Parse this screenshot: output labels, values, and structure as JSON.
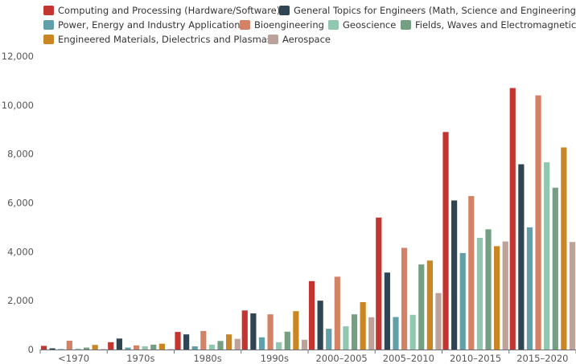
{
  "chart_data": {
    "type": "bar",
    "title": "",
    "xlabel": "",
    "ylabel": "",
    "ylim": [
      0,
      12000
    ],
    "y_ticks": [
      "0",
      "2,000",
      "4,000",
      "6,000",
      "8,000",
      "10,000",
      "12,000"
    ],
    "grid": false,
    "legend_position": "top-left",
    "categories": [
      "<1970",
      "1970s",
      "1980s",
      "1990s",
      "2000–2005",
      "2005–2010",
      "2010–2015",
      "2015–2020"
    ],
    "series": [
      {
        "name": "Computing and Processing (Hardware/Software)",
        "color": "#c23531",
        "values": [
          150,
          300,
          720,
          1600,
          2800,
          5400,
          8900,
          10700
        ]
      },
      {
        "name": "General Topics for Engineers (Math, Science and Engineering)",
        "color": "#2f4554",
        "values": [
          50,
          450,
          620,
          1480,
          2000,
          3150,
          6100,
          7580
        ]
      },
      {
        "name": "Power, Energy and Industry Applications",
        "color": "#61a0a8",
        "values": [
          20,
          80,
          130,
          500,
          850,
          1330,
          3950,
          5000
        ]
      },
      {
        "name": "Bioengineering",
        "color": "#d48265",
        "values": [
          360,
          170,
          760,
          1440,
          2980,
          4160,
          6280,
          10400
        ]
      },
      {
        "name": "Geoscience",
        "color": "#91c7ae",
        "values": [
          40,
          130,
          200,
          300,
          950,
          1420,
          4570,
          7660
        ]
      },
      {
        "name": "Fields, Waves and Electromagnetics",
        "color": "#749f83",
        "values": [
          80,
          200,
          350,
          730,
          1440,
          3480,
          4920,
          6620
        ]
      },
      {
        "name": "Engineered Materials, Dielectrics and Plasmas",
        "color": "#ca8622",
        "values": [
          190,
          240,
          620,
          1570,
          1940,
          3640,
          4230,
          8270
        ]
      },
      {
        "name": "Aerospace",
        "color": "#bda29a",
        "values": [
          20,
          20,
          440,
          400,
          1320,
          2310,
          4420,
          4400
        ]
      }
    ]
  }
}
